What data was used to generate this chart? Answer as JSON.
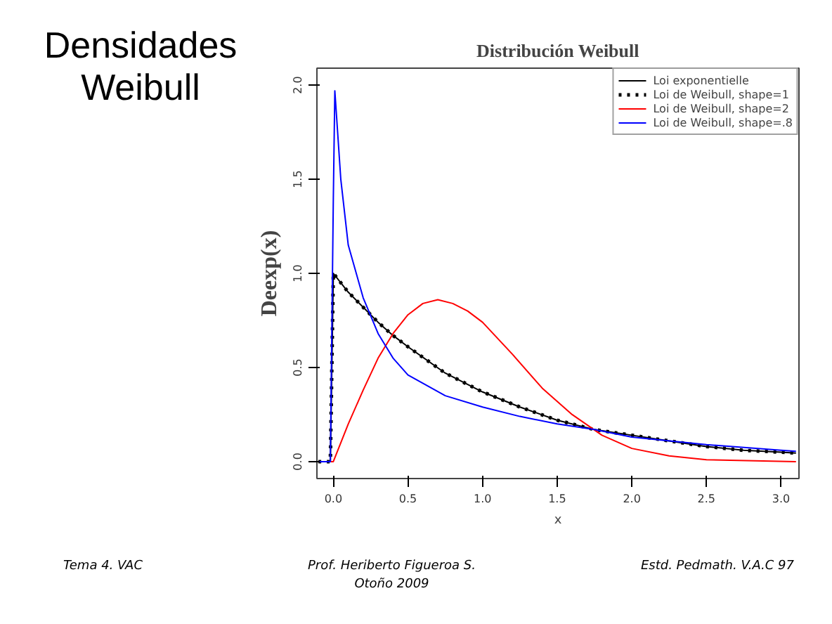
{
  "chart_data": {
    "type": "line",
    "title": "Distribución Weibull",
    "xlabel": "x",
    "ylabel": "Deexp(x)",
    "xlim": [
      -0.11,
      3.12
    ],
    "ylim": [
      -0.09,
      2.09
    ],
    "xticks": [
      {
        "value": 0,
        "label": "0.0"
      },
      {
        "value": 0.5,
        "label": "0.5"
      },
      {
        "value": 1,
        "label": "1.0"
      },
      {
        "value": 1.5,
        "label": "1.5"
      },
      {
        "value": 2,
        "label": "2.0"
      },
      {
        "value": 2.5,
        "label": "2.5"
      },
      {
        "value": 3,
        "label": "3.0"
      }
    ],
    "yticks": [
      {
        "value": 0,
        "label": "0.0"
      },
      {
        "value": 0.5,
        "label": "0.5"
      },
      {
        "value": 1,
        "label": "1.0"
      },
      {
        "value": 1.5,
        "label": "1.5"
      },
      {
        "value": 2,
        "label": "2.0"
      }
    ],
    "legend": "top right",
    "grid": false,
    "series": [
      {
        "name": "Loi exponentielle",
        "color": "#000000",
        "line_style": "solid",
        "x": [
          -0.1,
          -0.02,
          0,
          0.1,
          0.2,
          0.3,
          0.4,
          0.5,
          0.75,
          1.0,
          1.25,
          1.5,
          1.75,
          2.0,
          2.25,
          2.5,
          2.75,
          3.0,
          3.1
        ],
        "values": [
          0,
          0,
          1.0,
          0.9,
          0.82,
          0.74,
          0.67,
          0.61,
          0.47,
          0.37,
          0.29,
          0.22,
          0.17,
          0.14,
          0.11,
          0.08,
          0.06,
          0.05,
          0.045
        ]
      },
      {
        "name": "Loi de Weibull, shape=1",
        "color": "#000000",
        "line_style": "dotted",
        "x": [
          -0.1,
          -0.02,
          0,
          0.1,
          0.2,
          0.3,
          0.4,
          0.5,
          0.75,
          1.0,
          1.25,
          1.5,
          1.75,
          2.0,
          2.25,
          2.5,
          2.75,
          3.0,
          3.1
        ],
        "values": [
          0,
          0,
          1.0,
          0.9,
          0.82,
          0.74,
          0.67,
          0.61,
          0.47,
          0.37,
          0.29,
          0.22,
          0.17,
          0.14,
          0.11,
          0.08,
          0.06,
          0.05,
          0.045
        ]
      },
      {
        "name": "Loi de Weibull, shape=2",
        "color": "#ff0000",
        "line_style": "solid",
        "x": [
          -0.1,
          0,
          0.1,
          0.2,
          0.3,
          0.4,
          0.5,
          0.6,
          0.7,
          0.8,
          0.9,
          1.0,
          1.2,
          1.4,
          1.6,
          1.8,
          2.0,
          2.25,
          2.5,
          3.1
        ],
        "values": [
          0,
          0,
          0.2,
          0.38,
          0.55,
          0.68,
          0.78,
          0.84,
          0.86,
          0.84,
          0.8,
          0.74,
          0.57,
          0.39,
          0.25,
          0.14,
          0.07,
          0.03,
          0.01,
          0
        ]
      },
      {
        "name": "Loi de Weibull, shape=.8",
        "color": "#0000ff",
        "line_style": "solid",
        "x": [
          -0.1,
          -0.02,
          0,
          0.01,
          0.05,
          0.1,
          0.2,
          0.3,
          0.4,
          0.5,
          0.75,
          1.0,
          1.25,
          1.5,
          1.75,
          2.0,
          2.5,
          3.0,
          3.1
        ],
        "values": [
          0,
          0,
          1.4,
          1.97,
          1.5,
          1.15,
          0.87,
          0.68,
          0.55,
          0.46,
          0.35,
          0.29,
          0.24,
          0.2,
          0.17,
          0.13,
          0.09,
          0.06,
          0.055
        ]
      }
    ],
    "annotations": [
      "Densidades Weibull",
      "Tema 4. VAC",
      "Prof. Heriberto Figueroa S.\nOtoño 2009",
      "Estd. Pedmath.  V.A.C   97"
    ]
  }
}
